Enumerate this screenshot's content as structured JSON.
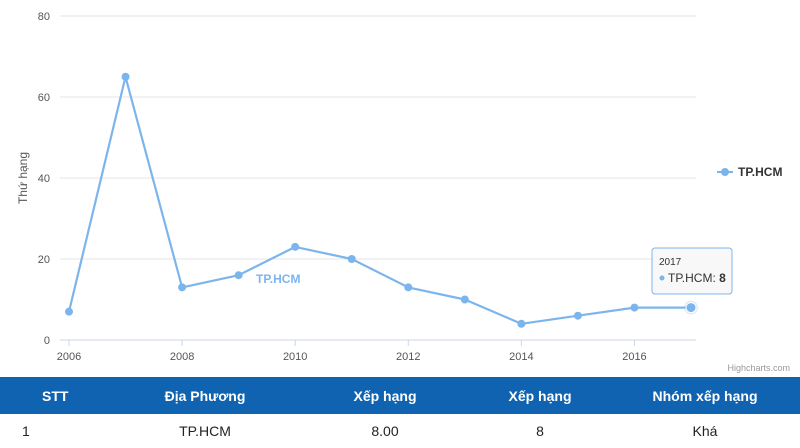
{
  "chart_data": {
    "type": "line",
    "title": "",
    "xlabel": "",
    "ylabel": "Thứ hạng",
    "xlim": [
      2006,
      2017
    ],
    "ylim": [
      0,
      80
    ],
    "x_ticks": [
      "2006",
      "2008",
      "2010",
      "2012",
      "2014",
      "2016"
    ],
    "y_ticks": [
      "0",
      "20",
      "40",
      "60",
      "80"
    ],
    "grid": true,
    "legend_position": "right",
    "series": [
      {
        "name": "TP.HCM",
        "color": "#7cb5ec",
        "x": [
          2006,
          2007,
          2008,
          2009,
          2010,
          2011,
          2012,
          2013,
          2014,
          2015,
          2016,
          2017
        ],
        "y": [
          7,
          65,
          13,
          16,
          23,
          20,
          13,
          10,
          4,
          6,
          8,
          8
        ]
      }
    ],
    "series_label": "TP.HCM",
    "tooltip": {
      "header": "2017",
      "series_name": "TP.HCM",
      "value": "8"
    },
    "credits": "Highcharts.com"
  },
  "table": {
    "headers": [
      "STT",
      "Địa Phương",
      "Xếp hạng",
      "Xếp hạng",
      "Nhóm xếp hạng"
    ],
    "header_color": "#0f63b0",
    "rows": [
      [
        "1",
        "TP.HCM",
        "8.00",
        "8",
        "Khá"
      ]
    ]
  }
}
